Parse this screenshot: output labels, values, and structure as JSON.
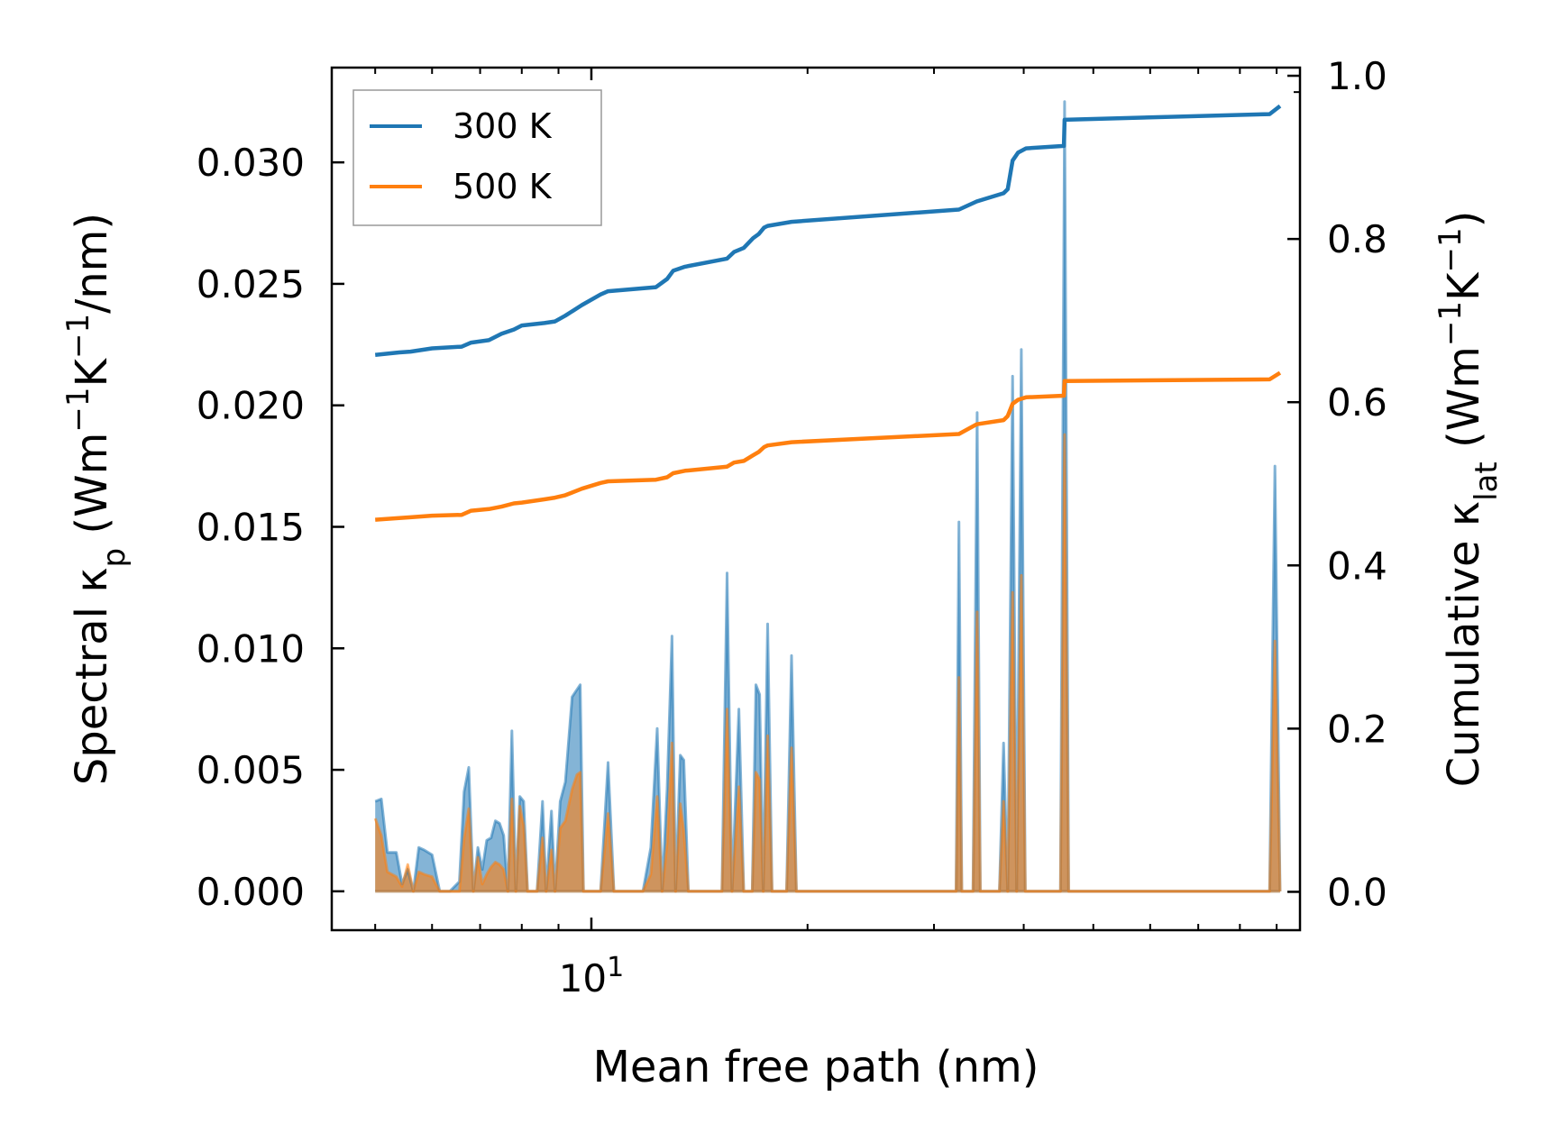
{
  "chart_data": {
    "type": "line",
    "xscale": "log",
    "xlabel": "Mean free path (nm)",
    "ylabel_left": "Spectral κ_p (Wm⁻¹K⁻¹/nm)",
    "ylabel_right": "Cumulative κ_lat (Wm⁻¹K⁻¹)",
    "xlim": [
      4.35,
      97
    ],
    "ylim_left": [
      -0.0016,
      0.0339
    ],
    "ylim_right": [
      -0.047,
      1.01
    ],
    "x_tick_labels": [
      {
        "value": 10,
        "base": "10",
        "exp": "1"
      }
    ],
    "left_ticks": [
      0.0,
      0.005,
      0.01,
      0.015,
      0.02,
      0.025,
      0.03
    ],
    "left_tick_labels": [
      "0.000",
      "0.005",
      "0.010",
      "0.015",
      "0.020",
      "0.025",
      "0.030"
    ],
    "right_ticks": [
      0.0,
      0.2,
      0.4,
      0.6,
      0.8,
      1.0
    ],
    "right_tick_labels": [
      "0.0",
      "0.2",
      "0.4",
      "0.6",
      "0.8",
      "1.0"
    ],
    "legend": {
      "location": "top-left",
      "entries": [
        "300 K",
        "500 K"
      ]
    },
    "series": [
      {
        "name": "300 K",
        "color": "#1f77b4",
        "spectral": [
          [
            5,
            0.0037
          ],
          [
            5.1,
            0.0038
          ],
          [
            5.2,
            0.0016
          ],
          [
            5.35,
            0.0016
          ],
          [
            5.45,
            0.0003
          ],
          [
            5.55,
            0.0009
          ],
          [
            5.65,
            0.0
          ],
          [
            5.75,
            0.0018
          ],
          [
            5.85,
            0.0017
          ],
          [
            6.0,
            0.0015
          ],
          [
            6.15,
            0.0
          ],
          [
            6.35,
            0.0
          ],
          [
            6.55,
            0.0004
          ],
          [
            6.65,
            0.0041
          ],
          [
            6.75,
            0.0051
          ],
          [
            6.85,
            0.0
          ],
          [
            6.95,
            0.0018
          ],
          [
            7.05,
            0.0009
          ],
          [
            7.15,
            0.0021
          ],
          [
            7.25,
            0.0022
          ],
          [
            7.35,
            0.0029
          ],
          [
            7.45,
            0.0028
          ],
          [
            7.55,
            0.0023
          ],
          [
            7.65,
            0.0
          ],
          [
            7.75,
            0.0066
          ],
          [
            7.85,
            0.0
          ],
          [
            7.95,
            0.0039
          ],
          [
            8.05,
            0.0037
          ],
          [
            8.15,
            0.0
          ],
          [
            8.4,
            0.0
          ],
          [
            8.55,
            0.0037
          ],
          [
            8.65,
            0.0
          ],
          [
            8.8,
            0.0033
          ],
          [
            8.9,
            0.0
          ],
          [
            9.05,
            0.0037
          ],
          [
            9.2,
            0.0045
          ],
          [
            9.4,
            0.008
          ],
          [
            9.55,
            0.0083
          ],
          [
            9.65,
            0.0085
          ],
          [
            9.75,
            0.0
          ],
          [
            10.3,
            0.0
          ],
          [
            10.55,
            0.0053
          ],
          [
            10.75,
            0.0
          ],
          [
            11.8,
            0.0
          ],
          [
            12.1,
            0.0018
          ],
          [
            12.35,
            0.0067
          ],
          [
            12.55,
            0.0
          ],
          [
            12.75,
            0.0042
          ],
          [
            12.95,
            0.0105
          ],
          [
            13.1,
            0.0
          ],
          [
            13.3,
            0.0056
          ],
          [
            13.45,
            0.0054
          ],
          [
            13.65,
            0.0
          ],
          [
            15.2,
            0.0
          ],
          [
            15.45,
            0.0131
          ],
          [
            15.7,
            0.0
          ],
          [
            16.05,
            0.0075
          ],
          [
            16.3,
            0.0
          ],
          [
            16.75,
            0.0
          ],
          [
            16.95,
            0.0085
          ],
          [
            17.15,
            0.0081
          ],
          [
            17.35,
            0.0
          ],
          [
            17.6,
            0.011
          ],
          [
            17.85,
            0.0
          ],
          [
            18.7,
            0.0
          ],
          [
            19.0,
            0.0097
          ],
          [
            19.3,
            0.0
          ],
          [
            32.2,
            0.0
          ],
          [
            32.5,
            0.0152
          ],
          [
            32.8,
            0.0
          ],
          [
            34.0,
            0.0
          ],
          [
            34.45,
            0.0197
          ],
          [
            34.8,
            0.0
          ],
          [
            37.0,
            0.0
          ],
          [
            37.5,
            0.0061
          ],
          [
            38.0,
            0.0
          ],
          [
            38.6,
            0.0212
          ],
          [
            39.1,
            0.0
          ],
          [
            39.7,
            0.0223
          ],
          [
            40.2,
            0.0
          ],
          [
            45.0,
            0.0
          ],
          [
            45.6,
            0.0325
          ],
          [
            46.2,
            0.0
          ],
          [
            88.0,
            0.0
          ],
          [
            89.5,
            0.0175
          ],
          [
            91.0,
            0.0
          ]
        ],
        "cumulative": [
          [
            5,
            0.658
          ],
          [
            5.4,
            0.661
          ],
          [
            5.6,
            0.662
          ],
          [
            6.0,
            0.666
          ],
          [
            6.6,
            0.668
          ],
          [
            6.8,
            0.673
          ],
          [
            7.2,
            0.676
          ],
          [
            7.5,
            0.684
          ],
          [
            7.8,
            0.689
          ],
          [
            8.0,
            0.694
          ],
          [
            8.6,
            0.697
          ],
          [
            8.9,
            0.699
          ],
          [
            9.2,
            0.706
          ],
          [
            9.7,
            0.719
          ],
          [
            10.3,
            0.732
          ],
          [
            10.55,
            0.736
          ],
          [
            12.3,
            0.741
          ],
          [
            12.75,
            0.751
          ],
          [
            13.0,
            0.761
          ],
          [
            13.5,
            0.766
          ],
          [
            15.45,
            0.776
          ],
          [
            15.8,
            0.784
          ],
          [
            16.3,
            0.789
          ],
          [
            16.8,
            0.801
          ],
          [
            17.1,
            0.806
          ],
          [
            17.4,
            0.814
          ],
          [
            17.6,
            0.816
          ],
          [
            19.0,
            0.821
          ],
          [
            32.5,
            0.836
          ],
          [
            34.4,
            0.846
          ],
          [
            37.5,
            0.856
          ],
          [
            38.0,
            0.861
          ],
          [
            38.6,
            0.896
          ],
          [
            39.3,
            0.906
          ],
          [
            40.3,
            0.911
          ],
          [
            45.5,
            0.914
          ],
          [
            45.6,
            0.946
          ],
          [
            88.0,
            0.953
          ],
          [
            91.0,
            0.963
          ]
        ]
      },
      {
        "name": "500 K",
        "color": "#ff7f0e",
        "spectral": [
          [
            5,
            0.003
          ],
          [
            5.1,
            0.0023
          ],
          [
            5.2,
            0.0008
          ],
          [
            5.35,
            0.0006
          ],
          [
            5.45,
            0.0002
          ],
          [
            5.55,
            0.0011
          ],
          [
            5.65,
            0.0
          ],
          [
            5.75,
            0.0008
          ],
          [
            5.85,
            0.0007
          ],
          [
            6.0,
            0.0006
          ],
          [
            6.15,
            0.0
          ],
          [
            6.35,
            0.0
          ],
          [
            6.55,
            0.0
          ],
          [
            6.65,
            0.0022
          ],
          [
            6.75,
            0.0034
          ],
          [
            6.85,
            0.0
          ],
          [
            6.95,
            0.0014
          ],
          [
            7.05,
            0.0003
          ],
          [
            7.15,
            0.0007
          ],
          [
            7.25,
            0.001
          ],
          [
            7.35,
            0.0012
          ],
          [
            7.45,
            0.0011
          ],
          [
            7.55,
            0.0009
          ],
          [
            7.65,
            0.0
          ],
          [
            7.75,
            0.0038
          ],
          [
            7.85,
            0.0
          ],
          [
            7.95,
            0.0035
          ],
          [
            8.05,
            0.0027
          ],
          [
            8.15,
            0.0
          ],
          [
            8.4,
            0.0
          ],
          [
            8.55,
            0.0022
          ],
          [
            8.65,
            0.0
          ],
          [
            8.8,
            0.0017
          ],
          [
            8.9,
            0.0
          ],
          [
            9.05,
            0.0026
          ],
          [
            9.2,
            0.0029
          ],
          [
            9.4,
            0.0042
          ],
          [
            9.55,
            0.0048
          ],
          [
            9.65,
            0.0049
          ],
          [
            9.75,
            0.0
          ],
          [
            10.3,
            0.0
          ],
          [
            10.55,
            0.0032
          ],
          [
            10.75,
            0.0
          ],
          [
            11.8,
            0.0
          ],
          [
            12.1,
            0.0007
          ],
          [
            12.35,
            0.0039
          ],
          [
            12.55,
            0.0
          ],
          [
            12.75,
            0.002
          ],
          [
            12.95,
            0.0061
          ],
          [
            13.1,
            0.0
          ],
          [
            13.3,
            0.0036
          ],
          [
            13.45,
            0.0025
          ],
          [
            13.65,
            0.0
          ],
          [
            15.2,
            0.0
          ],
          [
            15.45,
            0.0075
          ],
          [
            15.7,
            0.0
          ],
          [
            16.05,
            0.0043
          ],
          [
            16.3,
            0.0
          ],
          [
            16.75,
            0.0
          ],
          [
            16.95,
            0.0049
          ],
          [
            17.15,
            0.0046
          ],
          [
            17.35,
            0.0
          ],
          [
            17.6,
            0.0064
          ],
          [
            17.85,
            0.0
          ],
          [
            18.7,
            0.0
          ],
          [
            19.0,
            0.0059
          ],
          [
            19.3,
            0.0
          ],
          [
            32.2,
            0.0
          ],
          [
            32.5,
            0.0088
          ],
          [
            32.8,
            0.0
          ],
          [
            34.0,
            0.0
          ],
          [
            34.45,
            0.0115
          ],
          [
            34.8,
            0.0
          ],
          [
            37.0,
            0.0
          ],
          [
            37.5,
            0.0037
          ],
          [
            38.0,
            0.0
          ],
          [
            38.6,
            0.0123
          ],
          [
            39.1,
            0.0
          ],
          [
            39.7,
            0.013
          ],
          [
            40.2,
            0.0
          ],
          [
            45.0,
            0.0
          ],
          [
            45.6,
            0.0188
          ],
          [
            46.2,
            0.0
          ],
          [
            88.0,
            0.0
          ],
          [
            89.5,
            0.0103
          ],
          [
            91.0,
            0.0
          ]
        ],
        "cumulative": [
          [
            5,
            0.456
          ],
          [
            5.4,
            0.458
          ],
          [
            5.6,
            0.459
          ],
          [
            6.0,
            0.461
          ],
          [
            6.6,
            0.462
          ],
          [
            6.8,
            0.467
          ],
          [
            7.2,
            0.469
          ],
          [
            7.5,
            0.472
          ],
          [
            7.8,
            0.476
          ],
          [
            8.0,
            0.477
          ],
          [
            8.6,
            0.481
          ],
          [
            8.9,
            0.483
          ],
          [
            9.2,
            0.486
          ],
          [
            9.7,
            0.494
          ],
          [
            10.3,
            0.501
          ],
          [
            10.55,
            0.503
          ],
          [
            12.3,
            0.505
          ],
          [
            12.75,
            0.508
          ],
          [
            13.0,
            0.513
          ],
          [
            13.5,
            0.516
          ],
          [
            15.45,
            0.521
          ],
          [
            15.8,
            0.526
          ],
          [
            16.3,
            0.528
          ],
          [
            16.8,
            0.535
          ],
          [
            17.1,
            0.539
          ],
          [
            17.4,
            0.545
          ],
          [
            17.6,
            0.547
          ],
          [
            19.0,
            0.551
          ],
          [
            32.5,
            0.561
          ],
          [
            34.4,
            0.573
          ],
          [
            37.5,
            0.578
          ],
          [
            38.0,
            0.583
          ],
          [
            38.6,
            0.598
          ],
          [
            39.3,
            0.603
          ],
          [
            40.3,
            0.606
          ],
          [
            45.5,
            0.608
          ],
          [
            45.6,
            0.626
          ],
          [
            88.0,
            0.628
          ],
          [
            91.0,
            0.636
          ]
        ]
      }
    ]
  }
}
